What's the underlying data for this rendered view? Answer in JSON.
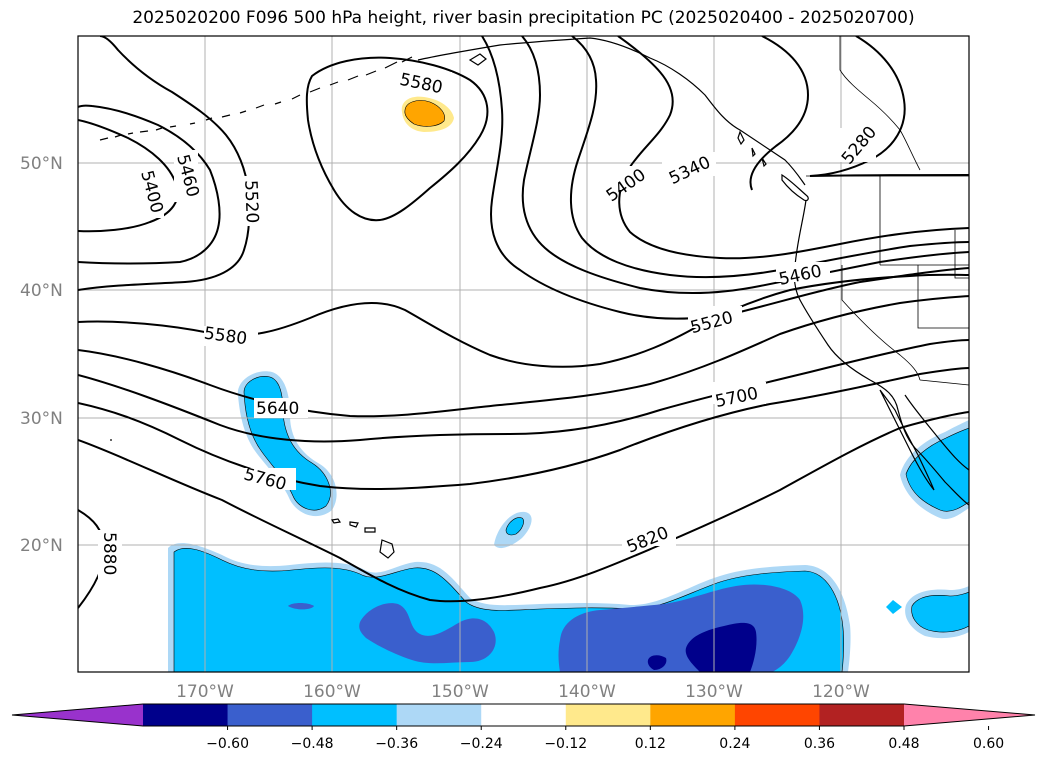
{
  "title": "2025020200 F096 500 hPa height, river basin precipitation PC (2025020400 - 2025020700)",
  "map": {
    "lat_ticks": [
      "20°N",
      "30°N",
      "40°N",
      "50°N"
    ],
    "lon_ticks": [
      "170°W",
      "160°W",
      "150°W",
      "140°W",
      "130°W",
      "120°W"
    ],
    "height_contour_labels": [
      "5280",
      "5340",
      "5400",
      "5460",
      "5520",
      "5580",
      "5640",
      "5700",
      "5760",
      "5820",
      "5880"
    ],
    "contour_color": "#000000",
    "gridline_color": "#b0b0b0",
    "tick_label_color": "#808080"
  },
  "colorbar": {
    "tick_labels": [
      "−0.60",
      "−0.48",
      "−0.36",
      "−0.24",
      "−0.12",
      "0.12",
      "0.24",
      "0.36",
      "0.48",
      "0.60"
    ],
    "colors": [
      "#9932cc",
      "#00008b",
      "#3a5fcd",
      "#00bfff",
      "#add8f6",
      "#ffffff",
      "#ffe98c",
      "#ffa500",
      "#ff4500",
      "#b22222",
      "#ff82ab"
    ],
    "extend": "both"
  }
}
